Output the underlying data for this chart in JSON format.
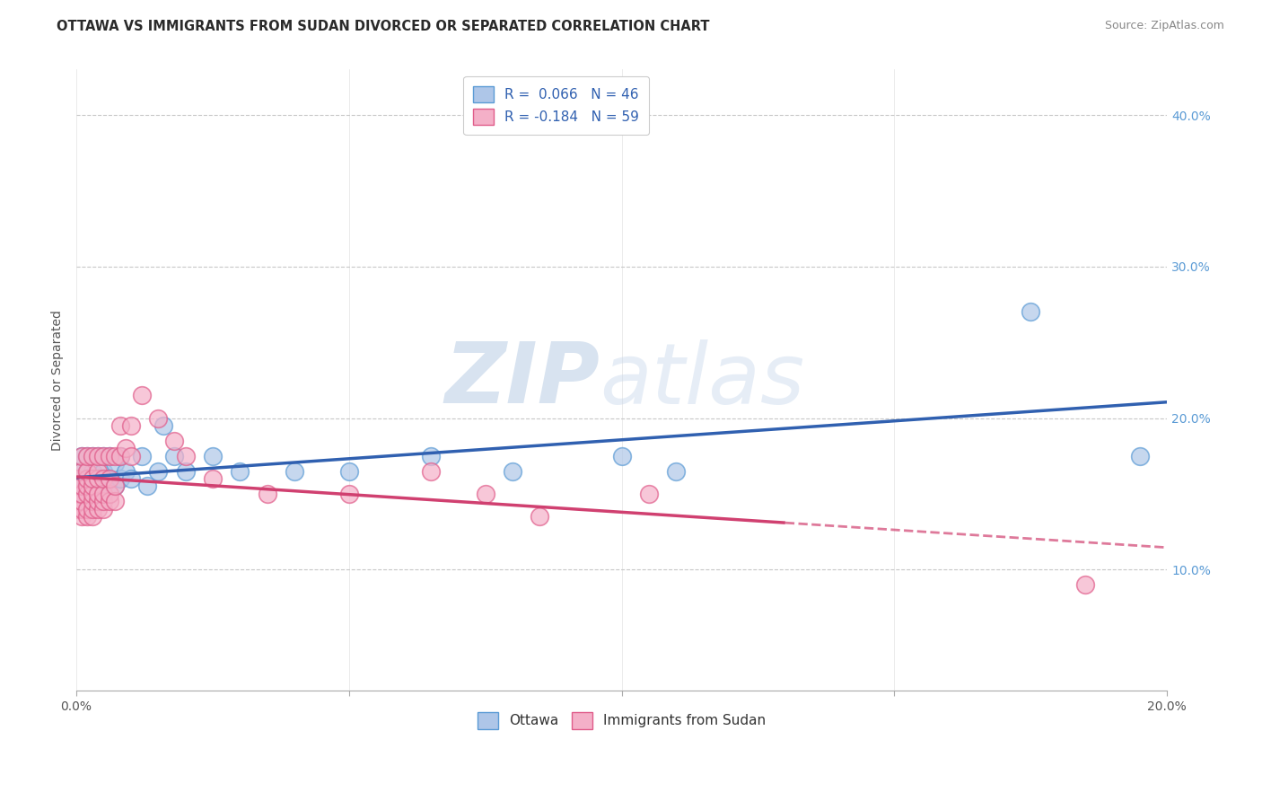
{
  "title": "OTTAWA VS IMMIGRANTS FROM SUDAN DIVORCED OR SEPARATED CORRELATION CHART",
  "source": "Source: ZipAtlas.com",
  "ylabel": "Divorced or Separated",
  "ytick_values": [
    0.1,
    0.2,
    0.3,
    0.4
  ],
  "xlim": [
    0.0,
    0.2
  ],
  "ylim": [
    0.02,
    0.43
  ],
  "ottawa_color": "#5b9bd5",
  "sudan_color": "#e05c8a",
  "ottawa_face_color": "#aec6e8",
  "sudan_face_color": "#f4b0c8",
  "regression_ottawa_color": "#3060b0",
  "regression_sudan_color": "#d04070",
  "watermark_zip": "ZIP",
  "watermark_atlas": "atlas",
  "background_color": "#ffffff",
  "grid_color": "#c8c8c8",
  "R_ottawa": 0.066,
  "N_ottawa": 46,
  "R_sudan": -0.184,
  "N_sudan": 59,
  "ottawa_x": [
    0.0,
    0.001,
    0.001,
    0.001,
    0.001,
    0.002,
    0.002,
    0.002,
    0.002,
    0.003,
    0.003,
    0.003,
    0.003,
    0.003,
    0.004,
    0.004,
    0.004,
    0.004,
    0.005,
    0.005,
    0.005,
    0.005,
    0.006,
    0.006,
    0.007,
    0.007,
    0.008,
    0.008,
    0.009,
    0.01,
    0.012,
    0.013,
    0.015,
    0.016,
    0.018,
    0.02,
    0.025,
    0.03,
    0.04,
    0.05,
    0.065,
    0.08,
    0.1,
    0.11,
    0.175,
    0.195
  ],
  "ottawa_y": [
    0.155,
    0.145,
    0.155,
    0.165,
    0.175,
    0.145,
    0.155,
    0.165,
    0.175,
    0.145,
    0.155,
    0.16,
    0.165,
    0.175,
    0.15,
    0.155,
    0.16,
    0.175,
    0.15,
    0.155,
    0.165,
    0.175,
    0.16,
    0.175,
    0.155,
    0.17,
    0.16,
    0.175,
    0.165,
    0.16,
    0.175,
    0.155,
    0.165,
    0.195,
    0.175,
    0.165,
    0.175,
    0.165,
    0.165,
    0.165,
    0.175,
    0.165,
    0.175,
    0.165,
    0.27,
    0.175
  ],
  "sudan_x": [
    0.0,
    0.0,
    0.0,
    0.001,
    0.001,
    0.001,
    0.001,
    0.001,
    0.001,
    0.001,
    0.002,
    0.002,
    0.002,
    0.002,
    0.002,
    0.002,
    0.002,
    0.003,
    0.003,
    0.003,
    0.003,
    0.003,
    0.003,
    0.003,
    0.004,
    0.004,
    0.004,
    0.004,
    0.004,
    0.004,
    0.005,
    0.005,
    0.005,
    0.005,
    0.005,
    0.006,
    0.006,
    0.006,
    0.006,
    0.007,
    0.007,
    0.007,
    0.008,
    0.008,
    0.009,
    0.01,
    0.01,
    0.012,
    0.015,
    0.018,
    0.02,
    0.025,
    0.035,
    0.05,
    0.065,
    0.075,
    0.085,
    0.105,
    0.185
  ],
  "sudan_y": [
    0.14,
    0.15,
    0.16,
    0.135,
    0.14,
    0.145,
    0.15,
    0.155,
    0.165,
    0.175,
    0.135,
    0.14,
    0.15,
    0.155,
    0.16,
    0.165,
    0.175,
    0.135,
    0.14,
    0.145,
    0.15,
    0.155,
    0.16,
    0.175,
    0.14,
    0.145,
    0.15,
    0.16,
    0.165,
    0.175,
    0.14,
    0.145,
    0.15,
    0.16,
    0.175,
    0.145,
    0.15,
    0.16,
    0.175,
    0.145,
    0.155,
    0.175,
    0.175,
    0.195,
    0.18,
    0.175,
    0.195,
    0.215,
    0.2,
    0.185,
    0.175,
    0.16,
    0.15,
    0.15,
    0.165,
    0.15,
    0.135,
    0.15,
    0.09
  ]
}
